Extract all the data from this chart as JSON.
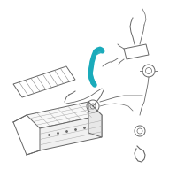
{
  "bg_color": "#ffffff",
  "highlight_color": "#1aabbb",
  "line_color": "#aaaaaa",
  "dark_line": "#666666",
  "mid_line": "#888888",
  "figsize": [
    2.0,
    2.0
  ],
  "dpi": 100,
  "white": "#ffffff"
}
